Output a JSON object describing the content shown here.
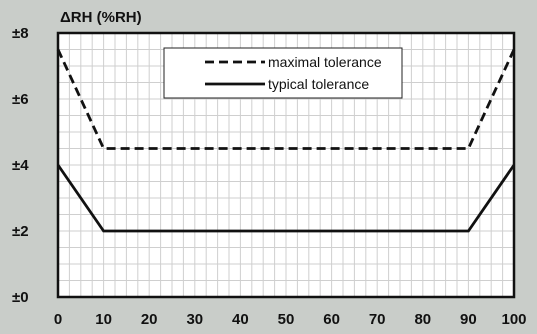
{
  "chart_data": {
    "type": "line",
    "ylabel": "ΔRH (%RH)",
    "xlim": [
      0,
      100
    ],
    "ylim": [
      0,
      8
    ],
    "x_ticks": [
      0,
      10,
      20,
      30,
      40,
      50,
      60,
      70,
      80,
      90,
      100
    ],
    "x_tick_labels": [
      "0",
      "10",
      "20",
      "30",
      "40",
      "50",
      "60",
      "70",
      "80",
      "90",
      "100"
    ],
    "y_ticks": [
      0,
      2,
      4,
      6,
      8
    ],
    "y_tick_labels": [
      "±0",
      "±2",
      "±4",
      "±6",
      "±8"
    ],
    "grid": true,
    "legend_position": "top-center",
    "series": [
      {
        "name": "maximal tolerance",
        "style": "dashed",
        "color": "#111111",
        "x": [
          0,
          10,
          90,
          100
        ],
        "y": [
          7.5,
          4.5,
          4.5,
          7.5
        ]
      },
      {
        "name": "typical tolerance",
        "style": "solid",
        "color": "#111111",
        "x": [
          0,
          10,
          90,
          100
        ],
        "y": [
          4,
          2,
          2,
          4
        ]
      }
    ]
  }
}
